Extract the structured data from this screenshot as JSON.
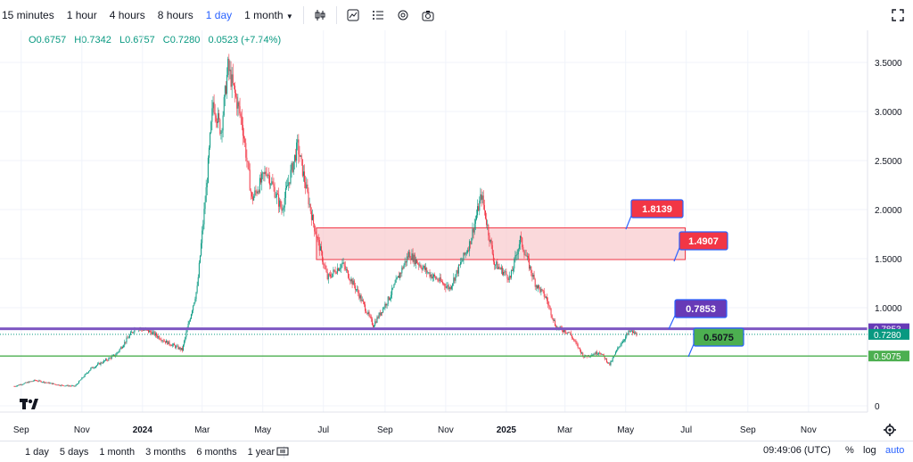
{
  "toolbar": {
    "timeframes": [
      "15 minutes",
      "1 hour",
      "4 hours",
      "8 hours",
      "1 day",
      "1 month"
    ],
    "active_timeframe": "1 day"
  },
  "ohlc": {
    "o_label": "O",
    "o": "0.6757",
    "h_label": "H",
    "h": "0.7342",
    "l_label": "L",
    "l": "0.6757",
    "c_label": "C",
    "c": "0.7280",
    "change": "0.0523 (+7.74%)"
  },
  "colors": {
    "up": "#089981",
    "down": "#f23645",
    "purple_line": "#7e57c2",
    "green_line": "#4caf50",
    "box_fill": "#f8c9cc",
    "box_border": "#f23645",
    "label_red": "#f23645",
    "label_purple": "#673ab7",
    "label_green": "#4caf50"
  },
  "chart_data": {
    "type": "candlestick",
    "yaxis_ticks": [
      "3.5000",
      "3.0000",
      "2.5000",
      "2.0000",
      "1.5000",
      "1.0000",
      "0"
    ],
    "xaxis_ticks": [
      "Sep",
      "Nov",
      "2024",
      "Mar",
      "May",
      "Jul",
      "Sep",
      "Nov",
      "2025",
      "Mar",
      "May",
      "Jul",
      "Sep",
      "Nov"
    ],
    "last_price": "0.7280",
    "price_series": [
      [
        "2023-08-25",
        0.2
      ],
      [
        "2023-09-15",
        0.26
      ],
      [
        "2023-10-10",
        0.21
      ],
      [
        "2023-10-25",
        0.2
      ],
      [
        "2023-11-10",
        0.38
      ],
      [
        "2023-12-05",
        0.52
      ],
      [
        "2023-12-25",
        0.8
      ],
      [
        "2024-01-10",
        0.75
      ],
      [
        "2024-01-25",
        0.65
      ],
      [
        "2024-02-10",
        0.57
      ],
      [
        "2024-02-25",
        1.2
      ],
      [
        "2024-03-05",
        2.2
      ],
      [
        "2024-03-12",
        3.1
      ],
      [
        "2024-03-20",
        2.8
      ],
      [
        "2024-03-27",
        3.45
      ],
      [
        "2024-04-10",
        2.9
      ],
      [
        "2024-04-20",
        2.1
      ],
      [
        "2024-05-05",
        2.4
      ],
      [
        "2024-05-20",
        2.0
      ],
      [
        "2024-06-05",
        2.65
      ],
      [
        "2024-06-20",
        1.9
      ],
      [
        "2024-07-05",
        1.3
      ],
      [
        "2024-07-20",
        1.45
      ],
      [
        "2024-08-05",
        1.15
      ],
      [
        "2024-08-20",
        0.82
      ],
      [
        "2024-09-05",
        1.1
      ],
      [
        "2024-09-25",
        1.55
      ],
      [
        "2024-10-15",
        1.35
      ],
      [
        "2024-11-05",
        1.2
      ],
      [
        "2024-11-25",
        1.65
      ],
      [
        "2024-12-07",
        2.15
      ],
      [
        "2024-12-20",
        1.45
      ],
      [
        "2025-01-05",
        1.3
      ],
      [
        "2025-01-15",
        1.7
      ],
      [
        "2025-01-30",
        1.25
      ],
      [
        "2025-02-10",
        1.1
      ],
      [
        "2025-02-20",
        0.8
      ],
      [
        "2025-03-05",
        0.75
      ],
      [
        "2025-03-20",
        0.5
      ],
      [
        "2025-04-05",
        0.55
      ],
      [
        "2025-04-15",
        0.42
      ],
      [
        "2025-04-25",
        0.62
      ],
      [
        "2025-05-05",
        0.76
      ],
      [
        "2025-05-12",
        0.73
      ]
    ],
    "horizontal_lines": [
      {
        "value": 0.7853,
        "label": "0.7853"
      },
      {
        "value": 0.5075,
        "label": "0.5075"
      }
    ],
    "zone": {
      "top": 1.8139,
      "bottom": 1.4907
    },
    "annotations": [
      "1.8139",
      "1.4907",
      "0.7853",
      "0.5075"
    ]
  },
  "bottom": {
    "ranges": [
      "1 day",
      "5 days",
      "1 month",
      "3 months",
      "6 months",
      "1 year"
    ],
    "clock": "09:49:06 (UTC)",
    "pct": "%",
    "log": "log",
    "auto": "auto"
  },
  "icons": [
    "candles-icon",
    "indicator-icon",
    "list-icon",
    "settings-icon",
    "camera-icon",
    "fullscreen-icon",
    "compare-icon",
    "gear-icon",
    "chevron-down-icon"
  ]
}
